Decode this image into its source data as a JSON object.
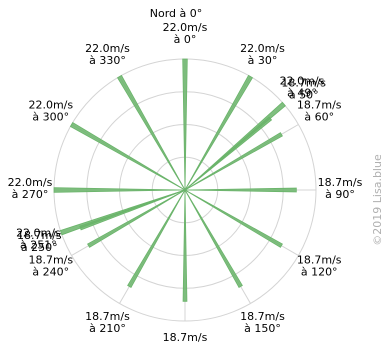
{
  "chart_data": {
    "type": "polar-bar",
    "north_label": "Nord à 0°",
    "r_max": 22.0,
    "ring_count": 4,
    "spoke_step_deg": 30,
    "series_color": "#6ab46a",
    "bars": [
      {
        "angle": 0,
        "value": 22.0,
        "label": [
          "22.0m/s",
          "à 0°"
        ]
      },
      {
        "angle": 30,
        "value": 22.0,
        "label": [
          "22.0m/s",
          "à 30°"
        ]
      },
      {
        "angle": 49,
        "value": 22.0,
        "label": [
          "22.0m/s",
          "à 49°"
        ]
      },
      {
        "angle": 50,
        "value": 18.7,
        "label": [
          "18.7m/s",
          "à 50°"
        ]
      },
      {
        "angle": 60,
        "value": 18.7,
        "label": [
          "18.7m/s",
          "à 60°"
        ]
      },
      {
        "angle": 90,
        "value": 18.7,
        "label": [
          "18.7m/s",
          "à 90°"
        ]
      },
      {
        "angle": 120,
        "value": 18.7,
        "label": [
          "18.7m/s",
          "à 120°"
        ]
      },
      {
        "angle": 150,
        "value": 18.7,
        "label": [
          "18.7m/s",
          "à 150°"
        ]
      },
      {
        "angle": 180,
        "value": 18.7,
        "label": [
          "18.7m/s",
          "à 180°"
        ]
      },
      {
        "angle": 210,
        "value": 18.7,
        "label": [
          "18.7m/s",
          "à 210°"
        ]
      },
      {
        "angle": 240,
        "value": 18.7,
        "label": [
          "18.7m/s",
          "à 240°"
        ]
      },
      {
        "angle": 250,
        "value": 18.7,
        "label": [
          "18.7m/s",
          "à 250°"
        ]
      },
      {
        "angle": 251,
        "value": 22.0,
        "label": [
          "22.0m/s",
          "à 251°"
        ]
      },
      {
        "angle": 270,
        "value": 22.0,
        "label": [
          "22.0m/s",
          "à 270°"
        ]
      },
      {
        "angle": 300,
        "value": 22.0,
        "label": [
          "22.0m/s",
          "à 300°"
        ]
      },
      {
        "angle": 330,
        "value": 22.0,
        "label": [
          "22.0m/s",
          "à 330°"
        ]
      }
    ]
  },
  "watermark": "©2019 Lisa.blue"
}
